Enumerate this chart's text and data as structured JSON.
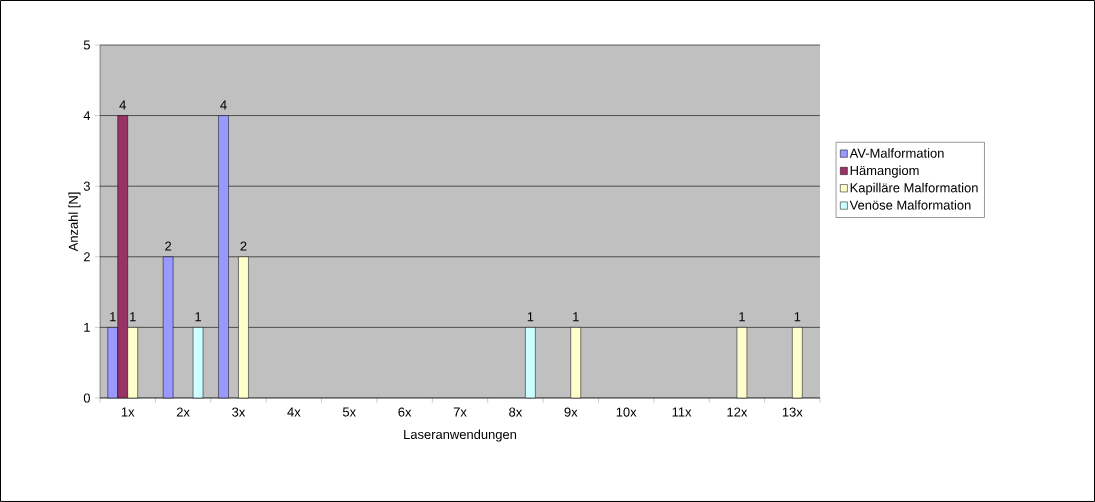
{
  "chart_data": {
    "type": "bar",
    "xlabel": "Laseranwendungen",
    "ylabel": "Anzahl [N]",
    "categories": [
      "1x",
      "2x",
      "3x",
      "4x",
      "5x",
      "6x",
      "7x",
      "8x",
      "9x",
      "10x",
      "11x",
      "12x",
      "13x"
    ],
    "series": [
      {
        "name": "AV-Malformation",
        "color": "#9999ff",
        "values": [
          1,
          2,
          4,
          0,
          0,
          0,
          0,
          0,
          0,
          0,
          0,
          0,
          0
        ],
        "value_labels": [
          "1",
          "2",
          "4",
          null,
          null,
          null,
          null,
          null,
          null,
          null,
          null,
          null,
          null
        ]
      },
      {
        "name": "Hämangiom",
        "color": "#993366",
        "values": [
          4,
          0,
          0,
          0,
          0,
          0,
          0,
          0,
          0,
          0,
          0,
          0,
          0
        ],
        "value_labels": [
          "4",
          null,
          null,
          null,
          null,
          null,
          null,
          null,
          null,
          null,
          null,
          null,
          null
        ]
      },
      {
        "name": "Kapilläre Malformation",
        "color": "#ffffcc",
        "values": [
          1,
          0,
          2,
          0,
          0,
          0,
          0,
          0,
          1,
          0,
          0,
          1,
          1
        ],
        "value_labels": [
          "1",
          null,
          "2",
          null,
          null,
          null,
          null,
          null,
          "1",
          null,
          null,
          "1",
          "1"
        ]
      },
      {
        "name": "Venöse Malformation",
        "color": "#ccffff",
        "values": [
          0,
          1,
          0,
          0,
          0,
          0,
          0,
          1,
          0,
          0,
          0,
          0,
          0
        ],
        "value_labels": [
          null,
          "1",
          null,
          null,
          null,
          null,
          null,
          "1",
          null,
          null,
          null,
          null,
          null
        ]
      }
    ],
    "ylim": [
      0,
      5
    ],
    "yticks": [
      0,
      1,
      2,
      3,
      4,
      5
    ],
    "grid": "y",
    "legend": "right"
  }
}
